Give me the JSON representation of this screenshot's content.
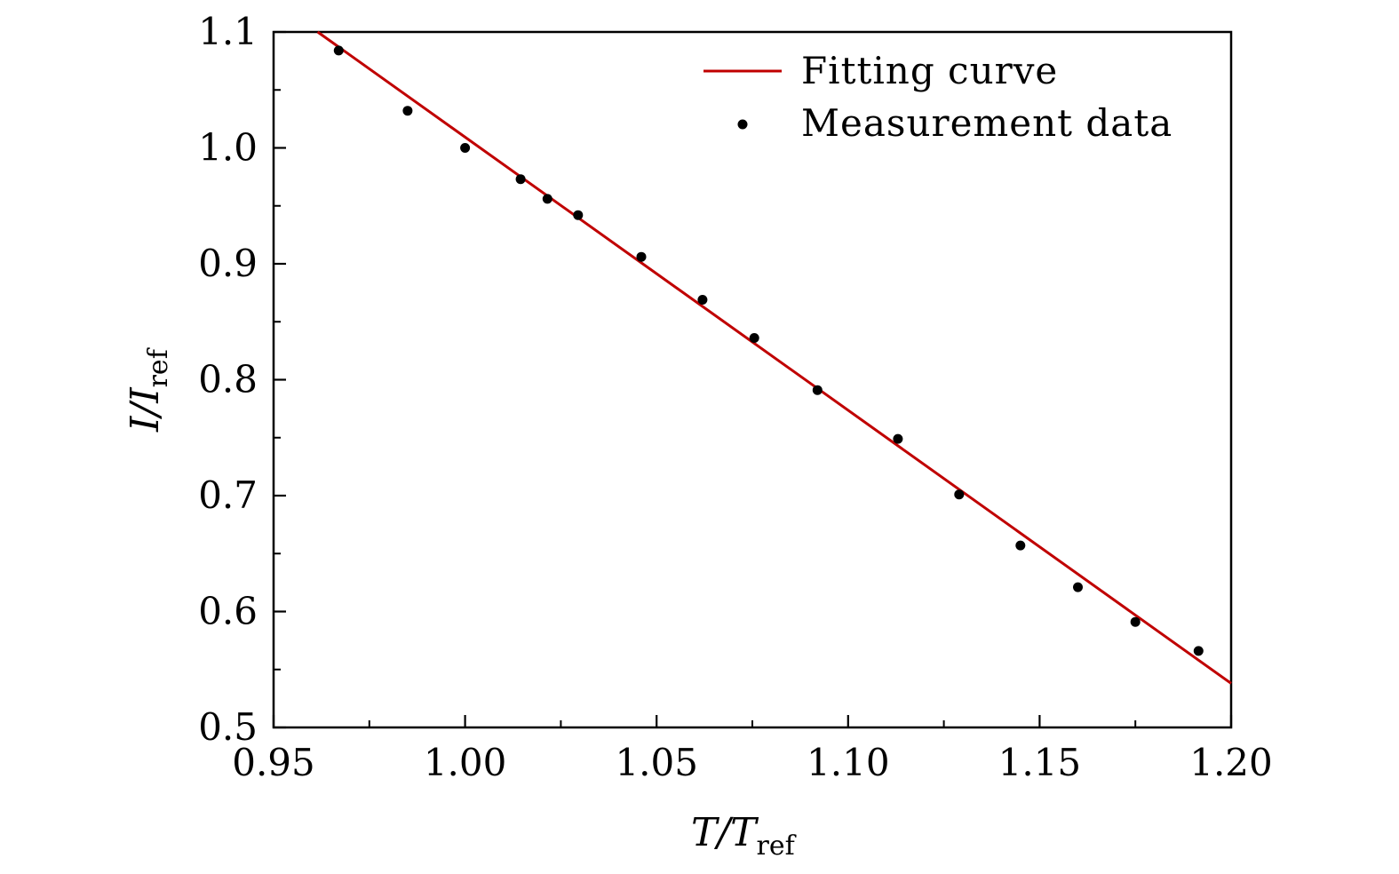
{
  "chart_data": {
    "type": "scatter",
    "title": "",
    "xlabel": {
      "main": "T/T",
      "sub": "ref"
    },
    "ylabel": {
      "main": "I/I",
      "sub": "ref"
    },
    "xlim": [
      0.95,
      1.2
    ],
    "ylim": [
      0.5,
      1.1
    ],
    "xticks": [
      0.95,
      1.0,
      1.05,
      1.1,
      1.15,
      1.2
    ],
    "xtick_labels": [
      "0.95",
      "1.00",
      "1.05",
      "1.10",
      "1.15",
      "1.20"
    ],
    "xminor_step": 0.025,
    "yticks": [
      0.5,
      0.6,
      0.7,
      0.8,
      0.9,
      1.0,
      1.1
    ],
    "ytick_labels": [
      "0.5",
      "0.6",
      "0.7",
      "0.8",
      "0.9",
      "1.0",
      "1.1"
    ],
    "yminor_step": 0.05,
    "grid": false,
    "legend_position": "top-right",
    "series": [
      {
        "name": "Fitting curve",
        "kind": "line",
        "color": "#c00000",
        "x": [
          0.9615,
          1.2
        ],
        "y": [
          1.1,
          0.538
        ]
      },
      {
        "name": "Measurement data",
        "kind": "scatter",
        "color": "#000000",
        "x": [
          0.967,
          0.985,
          1.0,
          1.0145,
          1.0215,
          1.0295,
          1.046,
          1.062,
          1.0755,
          1.092,
          1.113,
          1.129,
          1.145,
          1.16,
          1.175,
          1.1915
        ],
        "y": [
          1.084,
          1.032,
          1.0,
          0.973,
          0.956,
          0.942,
          0.906,
          0.869,
          0.836,
          0.791,
          0.749,
          0.701,
          0.657,
          0.621,
          0.591,
          0.566
        ]
      }
    ]
  }
}
